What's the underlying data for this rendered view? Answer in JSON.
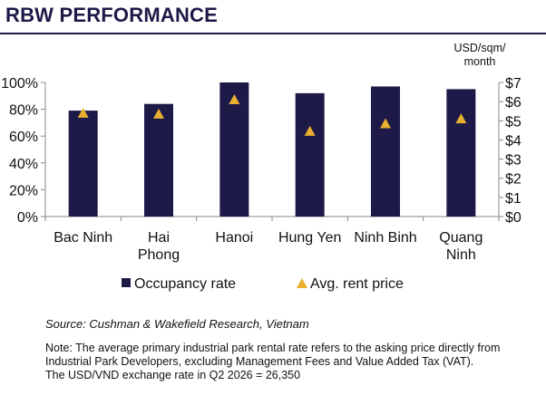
{
  "header": {
    "title": "RBW PERFORMANCE"
  },
  "chart_data": {
    "type": "bar",
    "title": "",
    "categories": [
      "Bac Ninh",
      "Hai\nPhong",
      "Hanoi",
      "Hung Yen",
      "Ninh Binh",
      "Quang\nNinh"
    ],
    "series": [
      {
        "name": "Occupancy rate",
        "type": "bar",
        "axis": "left",
        "unit": "%",
        "color": "#1d1a48",
        "values": [
          79,
          84,
          100,
          92,
          97,
          95
        ]
      },
      {
        "name": "Avg. rent price",
        "type": "marker",
        "marker": "triangle",
        "axis": "right",
        "unit": "USD/sqm/month",
        "color": "#e8b02f",
        "values": [
          5.4,
          5.35,
          6.1,
          4.45,
          4.85,
          5.1
        ]
      }
    ],
    "y_left": {
      "range": [
        0,
        100
      ],
      "ticks": [
        "0%",
        "20%",
        "40%",
        "60%",
        "80%",
        "100%"
      ]
    },
    "y_right": {
      "range": [
        0,
        7
      ],
      "ticks": [
        "$0",
        "$1",
        "$2",
        "$3",
        "$4",
        "$5",
        "$6",
        "$7"
      ],
      "label": "USD/sqm/\nmonth"
    },
    "grid": false,
    "legend_position": "bottom"
  },
  "footer": {
    "source": "Source: Cushman & Wakefield Research, Vietnam",
    "note": "Note: The average primary industrial park rental rate refers to the asking price directly from Industrial Park Developers, excluding Management Fees and Value Added Tax (VAT).",
    "exchange_rate": "The USD/VND exchange rate in Q2 2026 = 26,350"
  }
}
